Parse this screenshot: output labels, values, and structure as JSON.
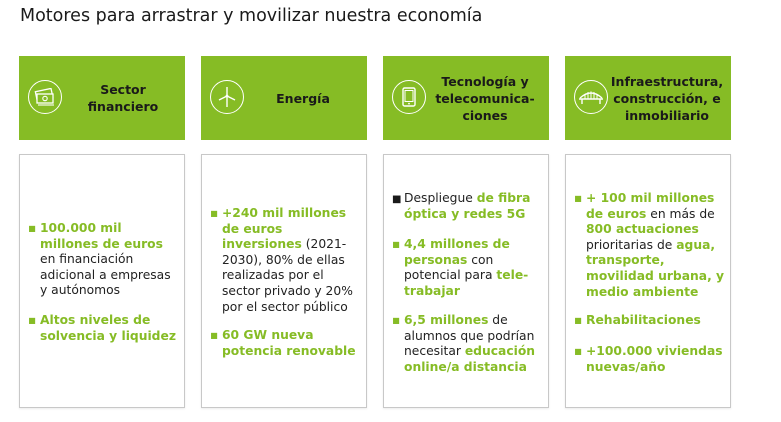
{
  "title": "Motores para arrastrar y movilizar nuestra economía",
  "columns": [
    {
      "heading": "Sector financiero",
      "icon": "money-icon",
      "items": [
        {
          "parts": [
            {
              "t": "100.000 mil millones de euros",
              "hl": true
            },
            {
              "t": " en financiación adicional a empresas y autónomos",
              "hl": false
            }
          ]
        },
        {
          "parts": [
            {
              "t": "Altos niveles de solvencia y liquidez",
              "hl": true
            }
          ]
        }
      ]
    },
    {
      "heading": "Energía",
      "icon": "wind-turbine-icon",
      "items": [
        {
          "parts": [
            {
              "t": "+240 mil millones de euros inversiones",
              "hl": true
            },
            {
              "t": " (2021-2030), 80% de ellas realizadas por el sector privado y 20% por el sector público",
              "hl": false
            }
          ]
        },
        {
          "parts": [
            {
              "t": "60 GW nueva potencia renovable",
              "hl": true
            }
          ]
        }
      ]
    },
    {
      "heading": "Tecnología y telecomunica-ciones",
      "icon": "tablet-icon",
      "items": [
        {
          "parts": [
            {
              "t": "Despliegue ",
              "hl": false
            },
            {
              "t": "de fibra óptica y redes 5G",
              "hl": true
            }
          ]
        },
        {
          "parts": [
            {
              "t": "4,4 millones de personas",
              "hl": true
            },
            {
              "t": " con potencial para ",
              "hl": false
            },
            {
              "t": "tele-trabajar",
              "hl": true
            }
          ]
        },
        {
          "parts": [
            {
              "t": "6,5 millones",
              "hl": true
            },
            {
              "t": " de alumnos que podrían necesitar ",
              "hl": false
            },
            {
              "t": "educación online/a distancia",
              "hl": true
            }
          ]
        }
      ]
    },
    {
      "heading": "Infraestructura, construcción, e inmobiliario",
      "icon": "bridge-icon",
      "items": [
        {
          "parts": [
            {
              "t": "+ 100 mil millones de euros",
              "hl": true
            },
            {
              "t": " en más de ",
              "hl": false
            },
            {
              "t": "800 actuaciones",
              "hl": true
            },
            {
              "t": " prioritarias de ",
              "hl": false
            },
            {
              "t": "agua, transporte, movilidad urbana, y medio ambiente",
              "hl": true
            }
          ]
        },
        {
          "parts": [
            {
              "t": "Rehabilitaciones",
              "hl": true
            }
          ]
        },
        {
          "parts": [
            {
              "t": "+100.000 viviendas nuevas/año",
              "hl": true
            }
          ]
        }
      ]
    }
  ],
  "colors": {
    "accent": "#86bc25",
    "text": "#1a1a1a"
  }
}
